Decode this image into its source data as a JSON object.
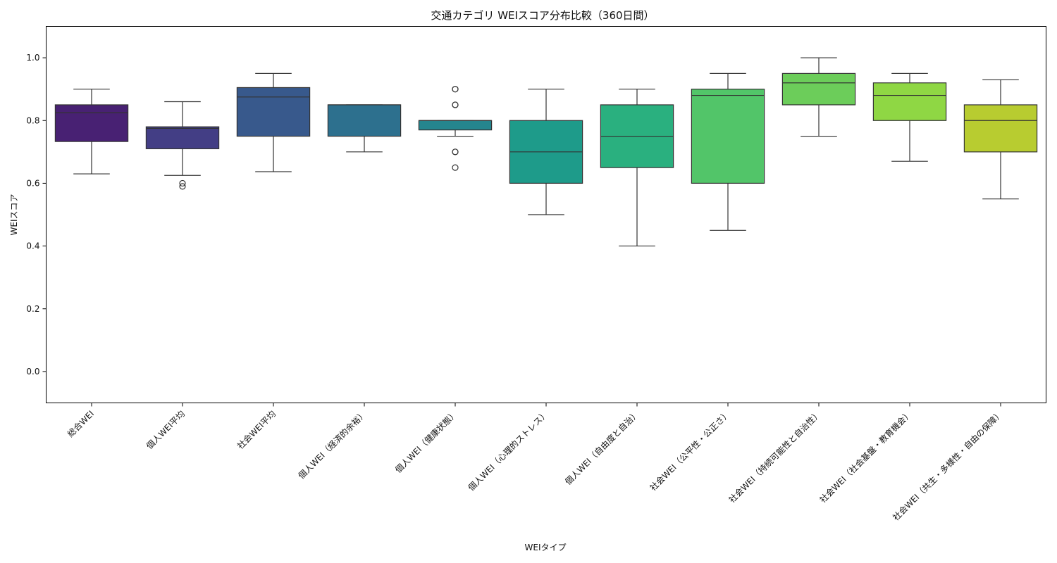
{
  "chart_data": {
    "type": "box",
    "title": "交通カテゴリ WEIスコア分布比較（360日間）",
    "xlabel": "WEIタイプ",
    "ylabel": "WEIスコア",
    "ylim": [
      -0.1,
      1.1
    ],
    "yticks": [
      0.0,
      0.2,
      0.4,
      0.6,
      0.8,
      1.0
    ],
    "ytick_labels": [
      "0.0",
      "0.2",
      "0.4",
      "0.6",
      "0.8",
      "1.0"
    ],
    "grid": false,
    "legend": "none",
    "categories": [
      "総合WEI",
      "個人WEI平均",
      "社会WEI平均",
      "個人WEI（経済的余裕）",
      "個人WEI（健康状態）",
      "個人WEI（心理的ストレス）",
      "個人WEI（自由度と自治）",
      "社会WEI（公平性・公正さ）",
      "社会WEI（持続可能性と自治性）",
      "社会WEI（社会基盤・教育機会）",
      "社会WEI（共生・多様性・自由の保障）"
    ],
    "boxes": [
      {
        "whisker_low": 0.63,
        "q1": 0.733,
        "median": 0.825,
        "q3": 0.85,
        "whisker_high": 0.9,
        "outliers": [],
        "color": "#482173"
      },
      {
        "whisker_low": 0.625,
        "q1": 0.71,
        "median": 0.775,
        "q3": 0.78,
        "whisker_high": 0.86,
        "outliers": [
          0.59,
          0.6
        ],
        "color": "#433e85"
      },
      {
        "whisker_low": 0.637,
        "q1": 0.75,
        "median": 0.875,
        "q3": 0.905,
        "whisker_high": 0.95,
        "outliers": [],
        "color": "#38598c"
      },
      {
        "whisker_low": 0.7,
        "q1": 0.75,
        "median": 0.85,
        "q3": 0.85,
        "whisker_high": 0.85,
        "outliers": [],
        "color": "#2d708e"
      },
      {
        "whisker_low": 0.75,
        "q1": 0.77,
        "median": 0.8,
        "q3": 0.8,
        "whisker_high": 0.8,
        "outliers": [
          0.65,
          0.7,
          0.7,
          0.85,
          0.85,
          0.9,
          0.9
        ],
        "color": "#25858e"
      },
      {
        "whisker_low": 0.5,
        "q1": 0.6,
        "median": 0.7,
        "q3": 0.8,
        "whisker_high": 0.9,
        "outliers": [],
        "color": "#1e9b8a"
      },
      {
        "whisker_low": 0.4,
        "q1": 0.65,
        "median": 0.75,
        "q3": 0.85,
        "whisker_high": 0.9,
        "outliers": [],
        "color": "#2ab07f"
      },
      {
        "whisker_low": 0.45,
        "q1": 0.6,
        "median": 0.88,
        "q3": 0.9,
        "whisker_high": 0.95,
        "outliers": [],
        "color": "#52c569"
      },
      {
        "whisker_low": 0.75,
        "q1": 0.85,
        "median": 0.92,
        "q3": 0.95,
        "whisker_high": 1.0,
        "outliers": [],
        "color": "#6ccd5a"
      },
      {
        "whisker_low": 0.67,
        "q1": 0.8,
        "median": 0.88,
        "q3": 0.92,
        "whisker_high": 0.95,
        "outliers": [],
        "color": "#8fd744"
      },
      {
        "whisker_low": 0.55,
        "q1": 0.7,
        "median": 0.8,
        "q3": 0.85,
        "whisker_high": 0.93,
        "outliers": [],
        "color": "#b8cc30"
      }
    ]
  }
}
